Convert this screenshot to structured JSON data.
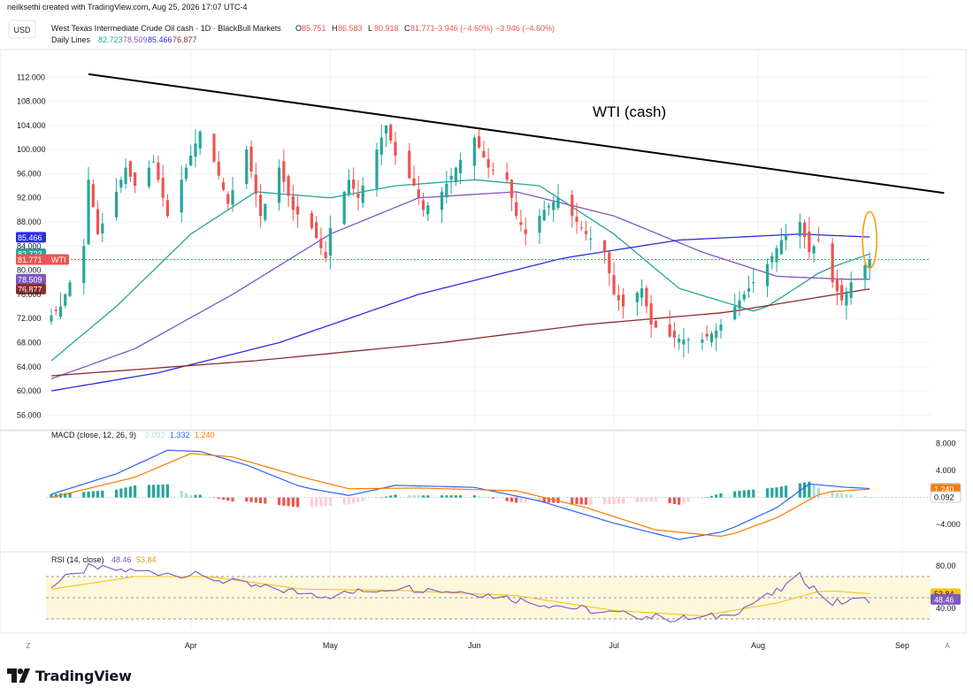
{
  "attribution": "neilksethi created with TradingView.com, Aug 25, 2026 17:07 UTC-4",
  "currency_button": "USD",
  "brand": "TradingView",
  "header": {
    "title": "West Texas Intermediate Crude Oil cash · 1D · BlackBull Markets",
    "ohlc": [
      {
        "k": "O",
        "v": "85.751"
      },
      {
        "k": "H",
        "v": "86.583"
      },
      {
        "k": "L",
        "v": "80.918"
      },
      {
        "k": "C",
        "v": "81.771"
      }
    ],
    "change": "−3.946 (−4.60%)",
    "change2": "−3.946 (−4.60%)",
    "ma_label": "Daily Lines",
    "ma_values": [
      "82.723",
      "78.509",
      "85.466",
      "76.877"
    ]
  },
  "colors": {
    "up": "#26a69a",
    "down": "#ef5350",
    "ma20": "#26a69a",
    "ma50": "#7e57c2",
    "ma100": "#2a2ee0",
    "ma200": "#8b2e2e",
    "macd": "#2962ff",
    "signal": "#f57c00",
    "rsi": "#7e57c2",
    "rsi_ma": "#f5c518",
    "highlight": "#f5a623",
    "trend": "#000000"
  },
  "chart_data": [
    {
      "type": "candlestick",
      "title": "West Texas Intermediate Crude Oil cash · 1D · BlackBull Markets",
      "annotation": "WTI (cash)",
      "ylim": [
        54,
        116
      ],
      "y_ticks": [
        "112.000",
        "108.000",
        "104.000",
        "100.000",
        "96.000",
        "92.000",
        "88.000",
        "84.000",
        "80.000",
        "76.000",
        "72.000",
        "68.000",
        "64.000",
        "60.000",
        "56.000"
      ],
      "x_ticks": [
        {
          "label": "Apr",
          "date": "2026-04-01"
        },
        {
          "label": "May",
          "date": "2026-05-01"
        },
        {
          "label": "Jun",
          "date": "2026-06-01"
        },
        {
          "label": "Jul",
          "date": "2026-07-01"
        },
        {
          "label": "Aug",
          "date": "2026-08-01"
        },
        {
          "label": "Sep",
          "date": "2026-09-01"
        }
      ],
      "price_anchors": [
        [
          "2026-03-02",
          72.5
        ],
        [
          "2026-03-04",
          74
        ],
        [
          "2026-03-06",
          78
        ],
        [
          "2026-03-09",
          84
        ],
        [
          "2026-03-10",
          95
        ],
        [
          "2026-03-12",
          86
        ],
        [
          "2026-03-16",
          93
        ],
        [
          "2026-03-18",
          97
        ],
        [
          "2026-03-20",
          94
        ],
        [
          "2026-03-24",
          98
        ],
        [
          "2026-03-27",
          89
        ],
        [
          "2026-03-31",
          97
        ],
        [
          "2026-04-03",
          103
        ],
        [
          "2026-04-06",
          98
        ],
        [
          "2026-04-09",
          91
        ],
        [
          "2026-04-13",
          100
        ],
        [
          "2026-04-16",
          89
        ],
        [
          "2026-04-20",
          97
        ],
        [
          "2026-04-23",
          90
        ],
        [
          "2026-04-27",
          87
        ],
        [
          "2026-04-30",
          82
        ],
        [
          "2026-05-01",
          87
        ],
        [
          "2026-05-05",
          95
        ],
        [
          "2026-05-07",
          92
        ],
        [
          "2026-05-11",
          100
        ],
        [
          "2026-05-13",
          104
        ],
        [
          "2026-05-15",
          99
        ],
        [
          "2026-05-19",
          94
        ],
        [
          "2026-05-21",
          90
        ],
        [
          "2026-05-25",
          93
        ],
        [
          "2026-05-28",
          97
        ],
        [
          "2026-06-01",
          102
        ],
        [
          "2026-06-04",
          97
        ],
        [
          "2026-06-08",
          95
        ],
        [
          "2026-06-10",
          89
        ],
        [
          "2026-06-12",
          86
        ],
        [
          "2026-06-16",
          90
        ],
        [
          "2026-06-19",
          92
        ],
        [
          "2026-06-22",
          89
        ],
        [
          "2026-06-25",
          86
        ],
        [
          "2026-06-29",
          83
        ],
        [
          "2026-07-01",
          76
        ],
        [
          "2026-07-03",
          74
        ],
        [
          "2026-07-07",
          77
        ],
        [
          "2026-07-09",
          71
        ],
        [
          "2026-07-13",
          69
        ],
        [
          "2026-07-16",
          68.5
        ],
        [
          "2026-07-20",
          68.5
        ],
        [
          "2026-07-23",
          70
        ],
        [
          "2026-07-27",
          74
        ],
        [
          "2026-07-30",
          77
        ],
        [
          "2026-08-03",
          81
        ],
        [
          "2026-08-06",
          85
        ],
        [
          "2026-08-10",
          88
        ],
        [
          "2026-08-12",
          83
        ],
        [
          "2026-08-14",
          85
        ],
        [
          "2026-08-17",
          78
        ],
        [
          "2026-08-19",
          75
        ],
        [
          "2026-08-21",
          78
        ],
        [
          "2026-08-25",
          81.771
        ]
      ],
      "series": [
        {
          "name": "20",
          "value": "82.723",
          "anchors": [
            [
              "2026-03-02",
              65
            ],
            [
              "2026-03-16",
              74
            ],
            [
              "2026-04-01",
              86
            ],
            [
              "2026-04-15",
              93
            ],
            [
              "2026-05-01",
              92
            ],
            [
              "2026-05-15",
              94
            ],
            [
              "2026-06-01",
              95
            ],
            [
              "2026-06-15",
              94
            ],
            [
              "2026-07-01",
              86
            ],
            [
              "2026-07-15",
              77
            ],
            [
              "2026-08-01",
              73
            ],
            [
              "2026-08-15",
              80
            ],
            [
              "2026-08-25",
              82.7
            ]
          ]
        },
        {
          "name": "50",
          "value": "78.509",
          "anchors": [
            [
              "2026-03-02",
              62
            ],
            [
              "2026-03-20",
              67
            ],
            [
              "2026-04-10",
              76
            ],
            [
              "2026-05-01",
              86
            ],
            [
              "2026-05-20",
              92
            ],
            [
              "2026-06-10",
              93
            ],
            [
              "2026-07-01",
              89
            ],
            [
              "2026-07-20",
              83
            ],
            [
              "2026-08-05",
              79
            ],
            [
              "2026-08-20",
              78.5
            ]
          ]
        },
        {
          "name": "100",
          "value": "85.466",
          "anchors": [
            [
              "2026-03-02",
              60
            ],
            [
              "2026-03-25",
              63
            ],
            [
              "2026-04-20",
              68
            ],
            [
              "2026-05-20",
              76
            ],
            [
              "2026-06-20",
              82
            ],
            [
              "2026-07-15",
              85
            ],
            [
              "2026-08-10",
              86
            ],
            [
              "2026-08-25",
              85.5
            ]
          ]
        },
        {
          "name": "200",
          "value": "76.877",
          "anchors": [
            [
              "2026-03-02",
              62.5
            ],
            [
              "2026-04-15",
              65
            ],
            [
              "2026-05-25",
              68
            ],
            [
              "2026-06-25",
              71
            ],
            [
              "2026-07-25",
              73
            ],
            [
              "2026-08-25",
              76.9
            ]
          ]
        }
      ],
      "trendline": [
        [
          "2026-03-10",
          112.5
        ],
        [
          "2026-09-10",
          92.8
        ]
      ],
      "current_price": {
        "label": "81.771",
        "symbol": "WTI",
        "value": 81.771
      },
      "price_badges": [
        {
          "label": "85.466",
          "value": 85.466,
          "color": "#2a2ee0"
        },
        {
          "label": "82.723",
          "value": 82.723,
          "color": "#26a69a"
        },
        {
          "label": "78.509",
          "value": 78.509,
          "color": "#7e57c2"
        },
        {
          "label": "76.877",
          "value": 76.877,
          "color": "#8b2e2e"
        }
      ],
      "highlight": {
        "date": "2026-08-25",
        "value": 85
      }
    },
    {
      "type": "line",
      "title": "MACD (close, 12, 26, 9)",
      "legend": [
        "0.092",
        "1.332",
        "1.240"
      ],
      "ylim": [
        -7.5,
        9.5
      ],
      "y_ticks": [
        "8.000",
        "4.000",
        "−4.000"
      ],
      "badges": [
        {
          "label": "1.332",
          "value": 1.332,
          "color": "#2962ff"
        },
        {
          "label": "1.240",
          "value": 1.24,
          "color": "#f57c00"
        },
        {
          "label": "0.092",
          "value": 0.092,
          "color": "#ffffff"
        }
      ],
      "series": [
        {
          "name": "MACD",
          "anchors": [
            [
              "2026-03-02",
              0.5
            ],
            [
              "2026-03-16",
              3.5
            ],
            [
              "2026-03-27",
              7
            ],
            [
              "2026-04-03",
              6.8
            ],
            [
              "2026-04-13",
              4.8
            ],
            [
              "2026-04-25",
              1.5
            ],
            [
              "2026-05-05",
              0.3
            ],
            [
              "2026-05-15",
              1.8
            ],
            [
              "2026-06-01",
              1.5
            ],
            [
              "2026-06-15",
              -0.5
            ],
            [
              "2026-07-01",
              -3.8
            ],
            [
              "2026-07-15",
              -6.2
            ],
            [
              "2026-07-25",
              -5
            ],
            [
              "2026-08-05",
              -1.5
            ],
            [
              "2026-08-12",
              2
            ],
            [
              "2026-08-20",
              1.5
            ],
            [
              "2026-08-25",
              1.332
            ]
          ]
        },
        {
          "name": "Signal",
          "anchors": [
            [
              "2026-03-02",
              0
            ],
            [
              "2026-03-20",
              3
            ],
            [
              "2026-04-01",
              6.5
            ],
            [
              "2026-04-10",
              6
            ],
            [
              "2026-04-25",
              3
            ],
            [
              "2026-05-05",
              1.3
            ],
            [
              "2026-05-20",
              1.4
            ],
            [
              "2026-06-10",
              1
            ],
            [
              "2026-06-25",
              -1.5
            ],
            [
              "2026-07-10",
              -4.8
            ],
            [
              "2026-07-25",
              -5.8
            ],
            [
              "2026-08-05",
              -3
            ],
            [
              "2026-08-15",
              0.8
            ],
            [
              "2026-08-25",
              1.24
            ]
          ]
        }
      ]
    },
    {
      "type": "line",
      "title": "RSI (14, close)",
      "legend": [
        "48.46",
        "53.84"
      ],
      "ylim": [
        20,
        90
      ],
      "y_ticks": [
        "80.00",
        "40.00"
      ],
      "bands": [
        30,
        70
      ],
      "mid": 50,
      "badges": [
        {
          "label": "53.84",
          "value": 53.84,
          "color": "#f5c518"
        },
        {
          "label": "48.46",
          "value": 48.46,
          "color": "#7e57c2"
        }
      ],
      "series": [
        {
          "name": "RSI",
          "anchors": [
            [
              "2026-03-02",
              62
            ],
            [
              "2026-03-10",
              78
            ],
            [
              "2026-03-20",
              75
            ],
            [
              "2026-04-01",
              72
            ],
            [
              "2026-04-15",
              60
            ],
            [
              "2026-05-01",
              52
            ],
            [
              "2026-05-15",
              60
            ],
            [
              "2026-06-01",
              55
            ],
            [
              "2026-06-15",
              45
            ],
            [
              "2026-07-01",
              35
            ],
            [
              "2026-07-15",
              30
            ],
            [
              "2026-07-25",
              33
            ],
            [
              "2026-08-05",
              55
            ],
            [
              "2026-08-10",
              70
            ],
            [
              "2026-08-17",
              45
            ],
            [
              "2026-08-25",
              48.46
            ]
          ]
        },
        {
          "name": "RSI-MA",
          "anchors": [
            [
              "2026-03-02",
              58
            ],
            [
              "2026-03-20",
              70
            ],
            [
              "2026-04-05",
              70
            ],
            [
              "2026-04-25",
              58
            ],
            [
              "2026-05-15",
              57
            ],
            [
              "2026-06-10",
              52
            ],
            [
              "2026-07-01",
              38
            ],
            [
              "2026-07-20",
              33
            ],
            [
              "2026-08-05",
              45
            ],
            [
              "2026-08-15",
              57
            ],
            [
              "2026-08-25",
              53.84
            ]
          ]
        }
      ]
    }
  ]
}
